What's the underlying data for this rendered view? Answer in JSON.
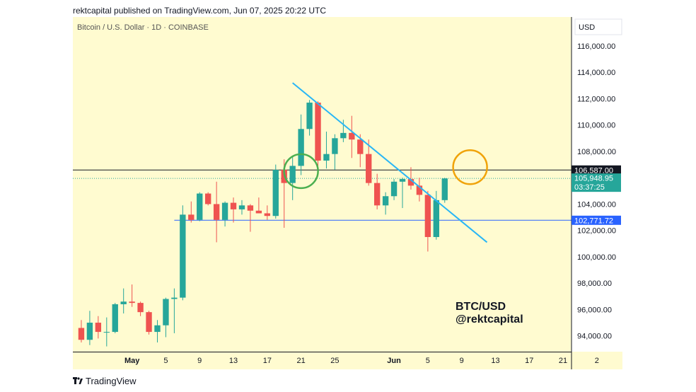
{
  "header": {
    "published": "rektcapital published on TradingView.com, Jun 07, 2025 20:22 UTC"
  },
  "footer": {
    "brand": "TradingView",
    "logo": "tradingview-logo-icon"
  },
  "colors": {
    "background": "#fffbd0",
    "up": "#26a69a",
    "down": "#ef5350",
    "trendline": "#29b6f6",
    "support": "#2962ff",
    "black_line": "#131722",
    "green_circle": "#4caf50",
    "orange_circle": "#f0a30a"
  },
  "chart_data": {
    "type": "candlestick",
    "title": "Bitcoin / U.S. Dollar · 1D · COINBASE",
    "currency_label": "USD",
    "watermark": [
      "BTC/USD",
      "@rektcapital"
    ],
    "ylim": [
      92800,
      118200
    ],
    "xlim": [
      "2025-04-24",
      "2025-06-22"
    ],
    "y_ticks": [
      94000,
      96000,
      98000,
      100000,
      102000,
      104000,
      106000,
      108000,
      110000,
      112000,
      114000,
      116000
    ],
    "y_tick_labels": [
      "94,000.00",
      "96,000.00",
      "98,000.00",
      "100,000.00",
      "102,000.00",
      "104,000.00",
      "106,000.00",
      "108,000.00",
      "110,000.00",
      "112,000.00",
      "114,000.00",
      "116,000.00"
    ],
    "x_ticks": [
      {
        "date": "2025-05-01",
        "label": "May",
        "bold": true
      },
      {
        "date": "2025-05-05",
        "label": "5"
      },
      {
        "date": "2025-05-09",
        "label": "9"
      },
      {
        "date": "2025-05-13",
        "label": "13"
      },
      {
        "date": "2025-05-17",
        "label": "17"
      },
      {
        "date": "2025-05-21",
        "label": "21"
      },
      {
        "date": "2025-05-25",
        "label": "25"
      },
      {
        "date": "2025-06-01",
        "label": "Jun",
        "bold": true
      },
      {
        "date": "2025-06-05",
        "label": "5"
      },
      {
        "date": "2025-06-09",
        "label": "9"
      },
      {
        "date": "2025-06-13",
        "label": "13"
      },
      {
        "date": "2025-06-17",
        "label": "17"
      },
      {
        "date": "2025-06-21",
        "label": "21"
      },
      {
        "date": "2025-06-25",
        "label": "2"
      }
    ],
    "candles": [
      {
        "date": "2025-04-25",
        "o": 94600,
        "h": 95200,
        "l": 93500,
        "c": 93700
      },
      {
        "date": "2025-04-26",
        "o": 93700,
        "h": 95900,
        "l": 93300,
        "c": 95000
      },
      {
        "date": "2025-04-27",
        "o": 95000,
        "h": 95500,
        "l": 93800,
        "c": 94300
      },
      {
        "date": "2025-04-28",
        "o": 94300,
        "h": 95400,
        "l": 93200,
        "c": 94300
      },
      {
        "date": "2025-04-29",
        "o": 94300,
        "h": 96500,
        "l": 94200,
        "c": 96400
      },
      {
        "date": "2025-04-30",
        "o": 96400,
        "h": 97600,
        "l": 95700,
        "c": 96600
      },
      {
        "date": "2025-05-01",
        "o": 96600,
        "h": 97900,
        "l": 96200,
        "c": 96500
      },
      {
        "date": "2025-05-02",
        "o": 96500,
        "h": 96600,
        "l": 95500,
        "c": 95800
      },
      {
        "date": "2025-05-03",
        "o": 95800,
        "h": 95900,
        "l": 94100,
        "c": 94300
      },
      {
        "date": "2025-05-04",
        "o": 94300,
        "h": 95200,
        "l": 93500,
        "c": 94800
      },
      {
        "date": "2025-05-05",
        "o": 94800,
        "h": 96900,
        "l": 93900,
        "c": 96800
      },
      {
        "date": "2025-05-06",
        "o": 96800,
        "h": 97600,
        "l": 94200,
        "c": 96900
      },
      {
        "date": "2025-05-07",
        "o": 96900,
        "h": 103900,
        "l": 96700,
        "c": 103200
      },
      {
        "date": "2025-05-08",
        "o": 103200,
        "h": 104200,
        "l": 102600,
        "c": 102800
      },
      {
        "date": "2025-05-09",
        "o": 102800,
        "h": 104900,
        "l": 102700,
        "c": 104800
      },
      {
        "date": "2025-05-10",
        "o": 104800,
        "h": 104900,
        "l": 103900,
        "c": 104000
      },
      {
        "date": "2025-05-11",
        "o": 104000,
        "h": 105700,
        "l": 101100,
        "c": 102800
      },
      {
        "date": "2025-05-12",
        "o": 102800,
        "h": 104200,
        "l": 102300,
        "c": 104100
      },
      {
        "date": "2025-05-13",
        "o": 104100,
        "h": 104500,
        "l": 102600,
        "c": 103600
      },
      {
        "date": "2025-05-14",
        "o": 103600,
        "h": 104300,
        "l": 103200,
        "c": 103900
      },
      {
        "date": "2025-05-15",
        "o": 103900,
        "h": 104000,
        "l": 101900,
        "c": 103500
      },
      {
        "date": "2025-05-16",
        "o": 103500,
        "h": 104500,
        "l": 103300,
        "c": 103300
      },
      {
        "date": "2025-05-17",
        "o": 103300,
        "h": 103900,
        "l": 102800,
        "c": 103100
      },
      {
        "date": "2025-05-18",
        "o": 103100,
        "h": 107000,
        "l": 102900,
        "c": 106600
      },
      {
        "date": "2025-05-19",
        "o": 106600,
        "h": 107400,
        "l": 102200,
        "c": 105600
      },
      {
        "date": "2025-05-20",
        "o": 105600,
        "h": 107600,
        "l": 104300,
        "c": 106900
      },
      {
        "date": "2025-05-21",
        "o": 106900,
        "h": 110800,
        "l": 106200,
        "c": 109700
      },
      {
        "date": "2025-05-22",
        "o": 109700,
        "h": 111900,
        "l": 109200,
        "c": 111700
      },
      {
        "date": "2025-05-23",
        "o": 111700,
        "h": 111800,
        "l": 106700,
        "c": 107300
      },
      {
        "date": "2025-05-24",
        "o": 107300,
        "h": 109500,
        "l": 106700,
        "c": 107800
      },
      {
        "date": "2025-05-25",
        "o": 107800,
        "h": 109300,
        "l": 106600,
        "c": 109000
      },
      {
        "date": "2025-05-26",
        "o": 109000,
        "h": 110400,
        "l": 108700,
        "c": 109400
      },
      {
        "date": "2025-05-27",
        "o": 109400,
        "h": 110700,
        "l": 107500,
        "c": 108900
      },
      {
        "date": "2025-05-28",
        "o": 108900,
        "h": 109300,
        "l": 106800,
        "c": 107800
      },
      {
        "date": "2025-05-29",
        "o": 107800,
        "h": 108900,
        "l": 105400,
        "c": 105600
      },
      {
        "date": "2025-05-30",
        "o": 105600,
        "h": 106300,
        "l": 103600,
        "c": 103900
      },
      {
        "date": "2025-05-31",
        "o": 103900,
        "h": 104900,
        "l": 103200,
        "c": 104600
      },
      {
        "date": "2025-06-01",
        "o": 104600,
        "h": 105900,
        "l": 104300,
        "c": 105700
      },
      {
        "date": "2025-06-02",
        "o": 105700,
        "h": 106000,
        "l": 103700,
        "c": 105900
      },
      {
        "date": "2025-06-03",
        "o": 105900,
        "h": 106800,
        "l": 105100,
        "c": 105400
      },
      {
        "date": "2025-06-04",
        "o": 105400,
        "h": 106000,
        "l": 104200,
        "c": 104700
      },
      {
        "date": "2025-06-05",
        "o": 104700,
        "h": 105000,
        "l": 100400,
        "c": 101500
      },
      {
        "date": "2025-06-06",
        "o": 101500,
        "h": 105000,
        "l": 101300,
        "c": 104300
      },
      {
        "date": "2025-06-07",
        "o": 104300,
        "h": 106000,
        "l": 104100,
        "c": 105949
      }
    ],
    "horizontal_lines": [
      {
        "name": "resistance",
        "price": 106587,
        "label": "106,587.00",
        "color": "#131722",
        "from": "2025-04-24"
      },
      {
        "name": "current",
        "price": 105949,
        "label": "105,948.95",
        "sublabel": "03:37:25",
        "color": "#26a69a",
        "dotted": true,
        "from": "2025-04-24"
      },
      {
        "name": "support",
        "price": 102772,
        "label": "102,771.72",
        "color": "#2962ff",
        "from": "2025-05-06"
      }
    ],
    "trendline": {
      "from": {
        "date": "2025-05-20",
        "price": 113200
      },
      "to": {
        "date": "2025-06-12",
        "price": 101100
      }
    },
    "circles": [
      {
        "name": "green-circle",
        "date": "2025-05-21",
        "price": 106500,
        "color": "#4caf50"
      },
      {
        "name": "orange-circle",
        "date": "2025-06-10",
        "price": 106800,
        "color": "#f0a30a"
      }
    ]
  }
}
